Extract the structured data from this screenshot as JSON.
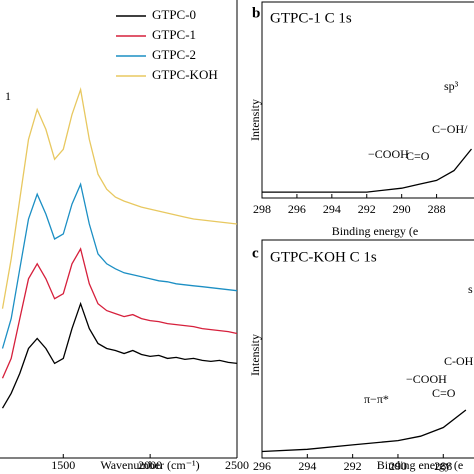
{
  "chart_data": [
    {
      "type": "line",
      "xlabel": "Wavenumber (cm⁻¹)",
      "annotation": "1",
      "x": [
        1150,
        1200,
        1250,
        1300,
        1350,
        1400,
        1450,
        1500,
        1550,
        1600,
        1650,
        1700,
        1750,
        1800,
        1850,
        1900,
        1950,
        2000,
        2050,
        2100,
        2150,
        2200,
        2250,
        2300,
        2350,
        2400,
        2450,
        2500
      ],
      "series": [
        {
          "name": "GTPC-0",
          "color": "#000000",
          "values": [
            50,
            65,
            85,
            110,
            120,
            110,
            95,
            100,
            130,
            155,
            130,
            115,
            110,
            108,
            105,
            108,
            104,
            102,
            103,
            100,
            101,
            99,
            100,
            98,
            97,
            98,
            96,
            95
          ]
        },
        {
          "name": "GTPC-1",
          "color": "#d6203c",
          "values": [
            80,
            100,
            140,
            180,
            195,
            180,
            160,
            165,
            195,
            210,
            175,
            155,
            148,
            145,
            142,
            144,
            140,
            138,
            137,
            135,
            134,
            133,
            132,
            130,
            129,
            128,
            127,
            125
          ]
        },
        {
          "name": "GTPC-2",
          "color": "#1c8fc4",
          "values": [
            110,
            140,
            190,
            240,
            265,
            245,
            220,
            225,
            255,
            275,
            235,
            205,
            195,
            190,
            186,
            184,
            182,
            180,
            178,
            177,
            175,
            174,
            173,
            172,
            171,
            170,
            169,
            168
          ]
        },
        {
          "name": "GTPC-KOH",
          "color": "#e8c860",
          "values": [
            150,
            200,
            260,
            320,
            350,
            330,
            300,
            310,
            345,
            370,
            320,
            285,
            270,
            262,
            258,
            255,
            252,
            250,
            248,
            246,
            244,
            242,
            240,
            239,
            238,
            237,
            236,
            235
          ]
        }
      ],
      "xlim": [
        1130,
        2500
      ],
      "xticks": [
        1500,
        2000,
        2500
      ],
      "ylim": [
        0,
        460
      ]
    },
    {
      "type": "line",
      "panel": "b",
      "title": "GTPC-1  C 1s",
      "xlabel": "Binding energy (e",
      "ylabel": "Intensity",
      "x": [
        298,
        296,
        294,
        292,
        290,
        289,
        288,
        287,
        286
      ],
      "series": [
        {
          "color": "#000000",
          "values": [
            3,
            3,
            3,
            3,
            5,
            7,
            9,
            14,
            25
          ]
        }
      ],
      "xlim": [
        298,
        285.8
      ],
      "xticks": [
        298,
        296,
        294,
        292,
        290,
        288
      ],
      "ylim": [
        0,
        100
      ],
      "annotations": [
        "sp³",
        "C−OH/",
        "−COOH",
        "C=O"
      ]
    },
    {
      "type": "line",
      "panel": "c",
      "title": "GTPC-KOH  C 1s",
      "xlabel": "Binding energy (e",
      "ylabel": "Intensity",
      "x": [
        296,
        294,
        292,
        290,
        289,
        288,
        287
      ],
      "series": [
        {
          "color": "#000000",
          "values": [
            3,
            4,
            6,
            8,
            10,
            14,
            22
          ]
        }
      ],
      "xlim": [
        296,
        286.6
      ],
      "xticks": [
        296,
        294,
        292,
        290,
        288
      ],
      "ylim": [
        0,
        100
      ],
      "annotations": [
        "s",
        "C-OH",
        "−COOH",
        "C=O",
        "π−π*"
      ]
    }
  ]
}
